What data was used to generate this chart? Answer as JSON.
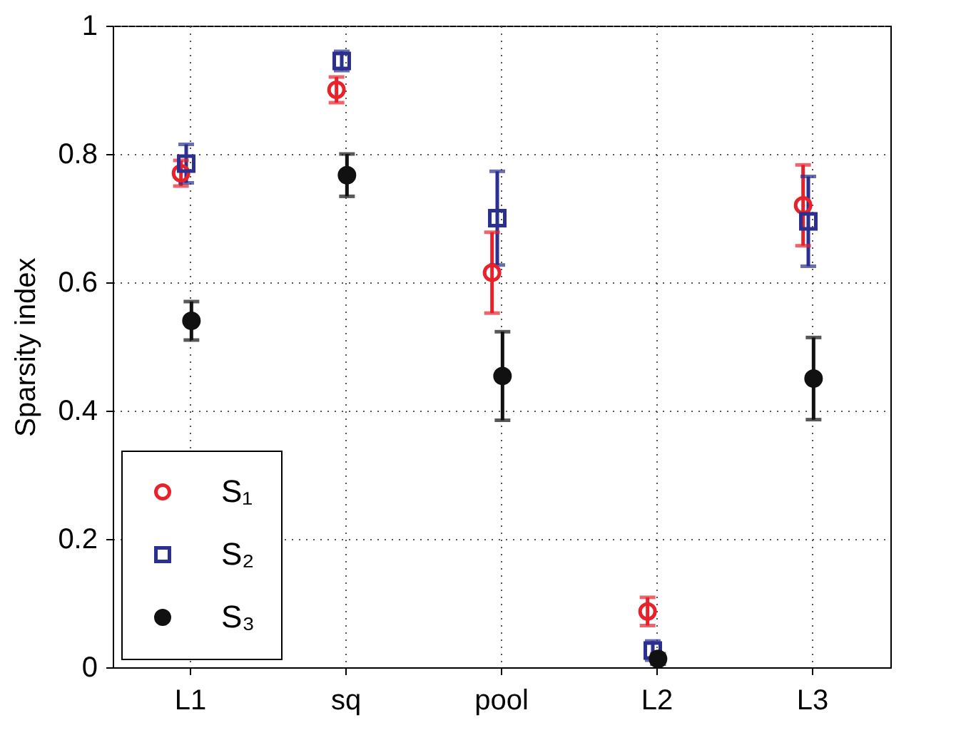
{
  "chart_data": {
    "type": "scatter",
    "ylabel": "Sparsity index",
    "categories": [
      "L1",
      "sq",
      "pool",
      "L2",
      "L3"
    ],
    "ylim": [
      0,
      1
    ],
    "yticks": [
      0,
      0.2,
      0.4,
      0.6,
      0.8,
      1
    ],
    "grid": true,
    "legend": "bottom left",
    "series": [
      {
        "name": "S₁",
        "color": "#e8212b",
        "marker": "circle",
        "values": [
          0.77,
          0.9,
          0.615,
          0.087,
          0.72
        ],
        "errors": [
          0.02,
          0.02,
          0.063,
          0.022,
          0.063
        ]
      },
      {
        "name": "S₂",
        "color": "#2b2f8f",
        "marker": "square",
        "values": [
          0.785,
          0.945,
          0.7,
          0.026,
          0.695
        ],
        "errors": [
          0.03,
          0.015,
          0.073,
          0.015,
          0.07
        ]
      },
      {
        "name": "S₃",
        "color": "#111111",
        "marker": "circle",
        "values": [
          0.54,
          0.767,
          0.454,
          0.013,
          0.45
        ],
        "errors": [
          0.03,
          0.033,
          0.069,
          0.008,
          0.064
        ]
      }
    ]
  }
}
